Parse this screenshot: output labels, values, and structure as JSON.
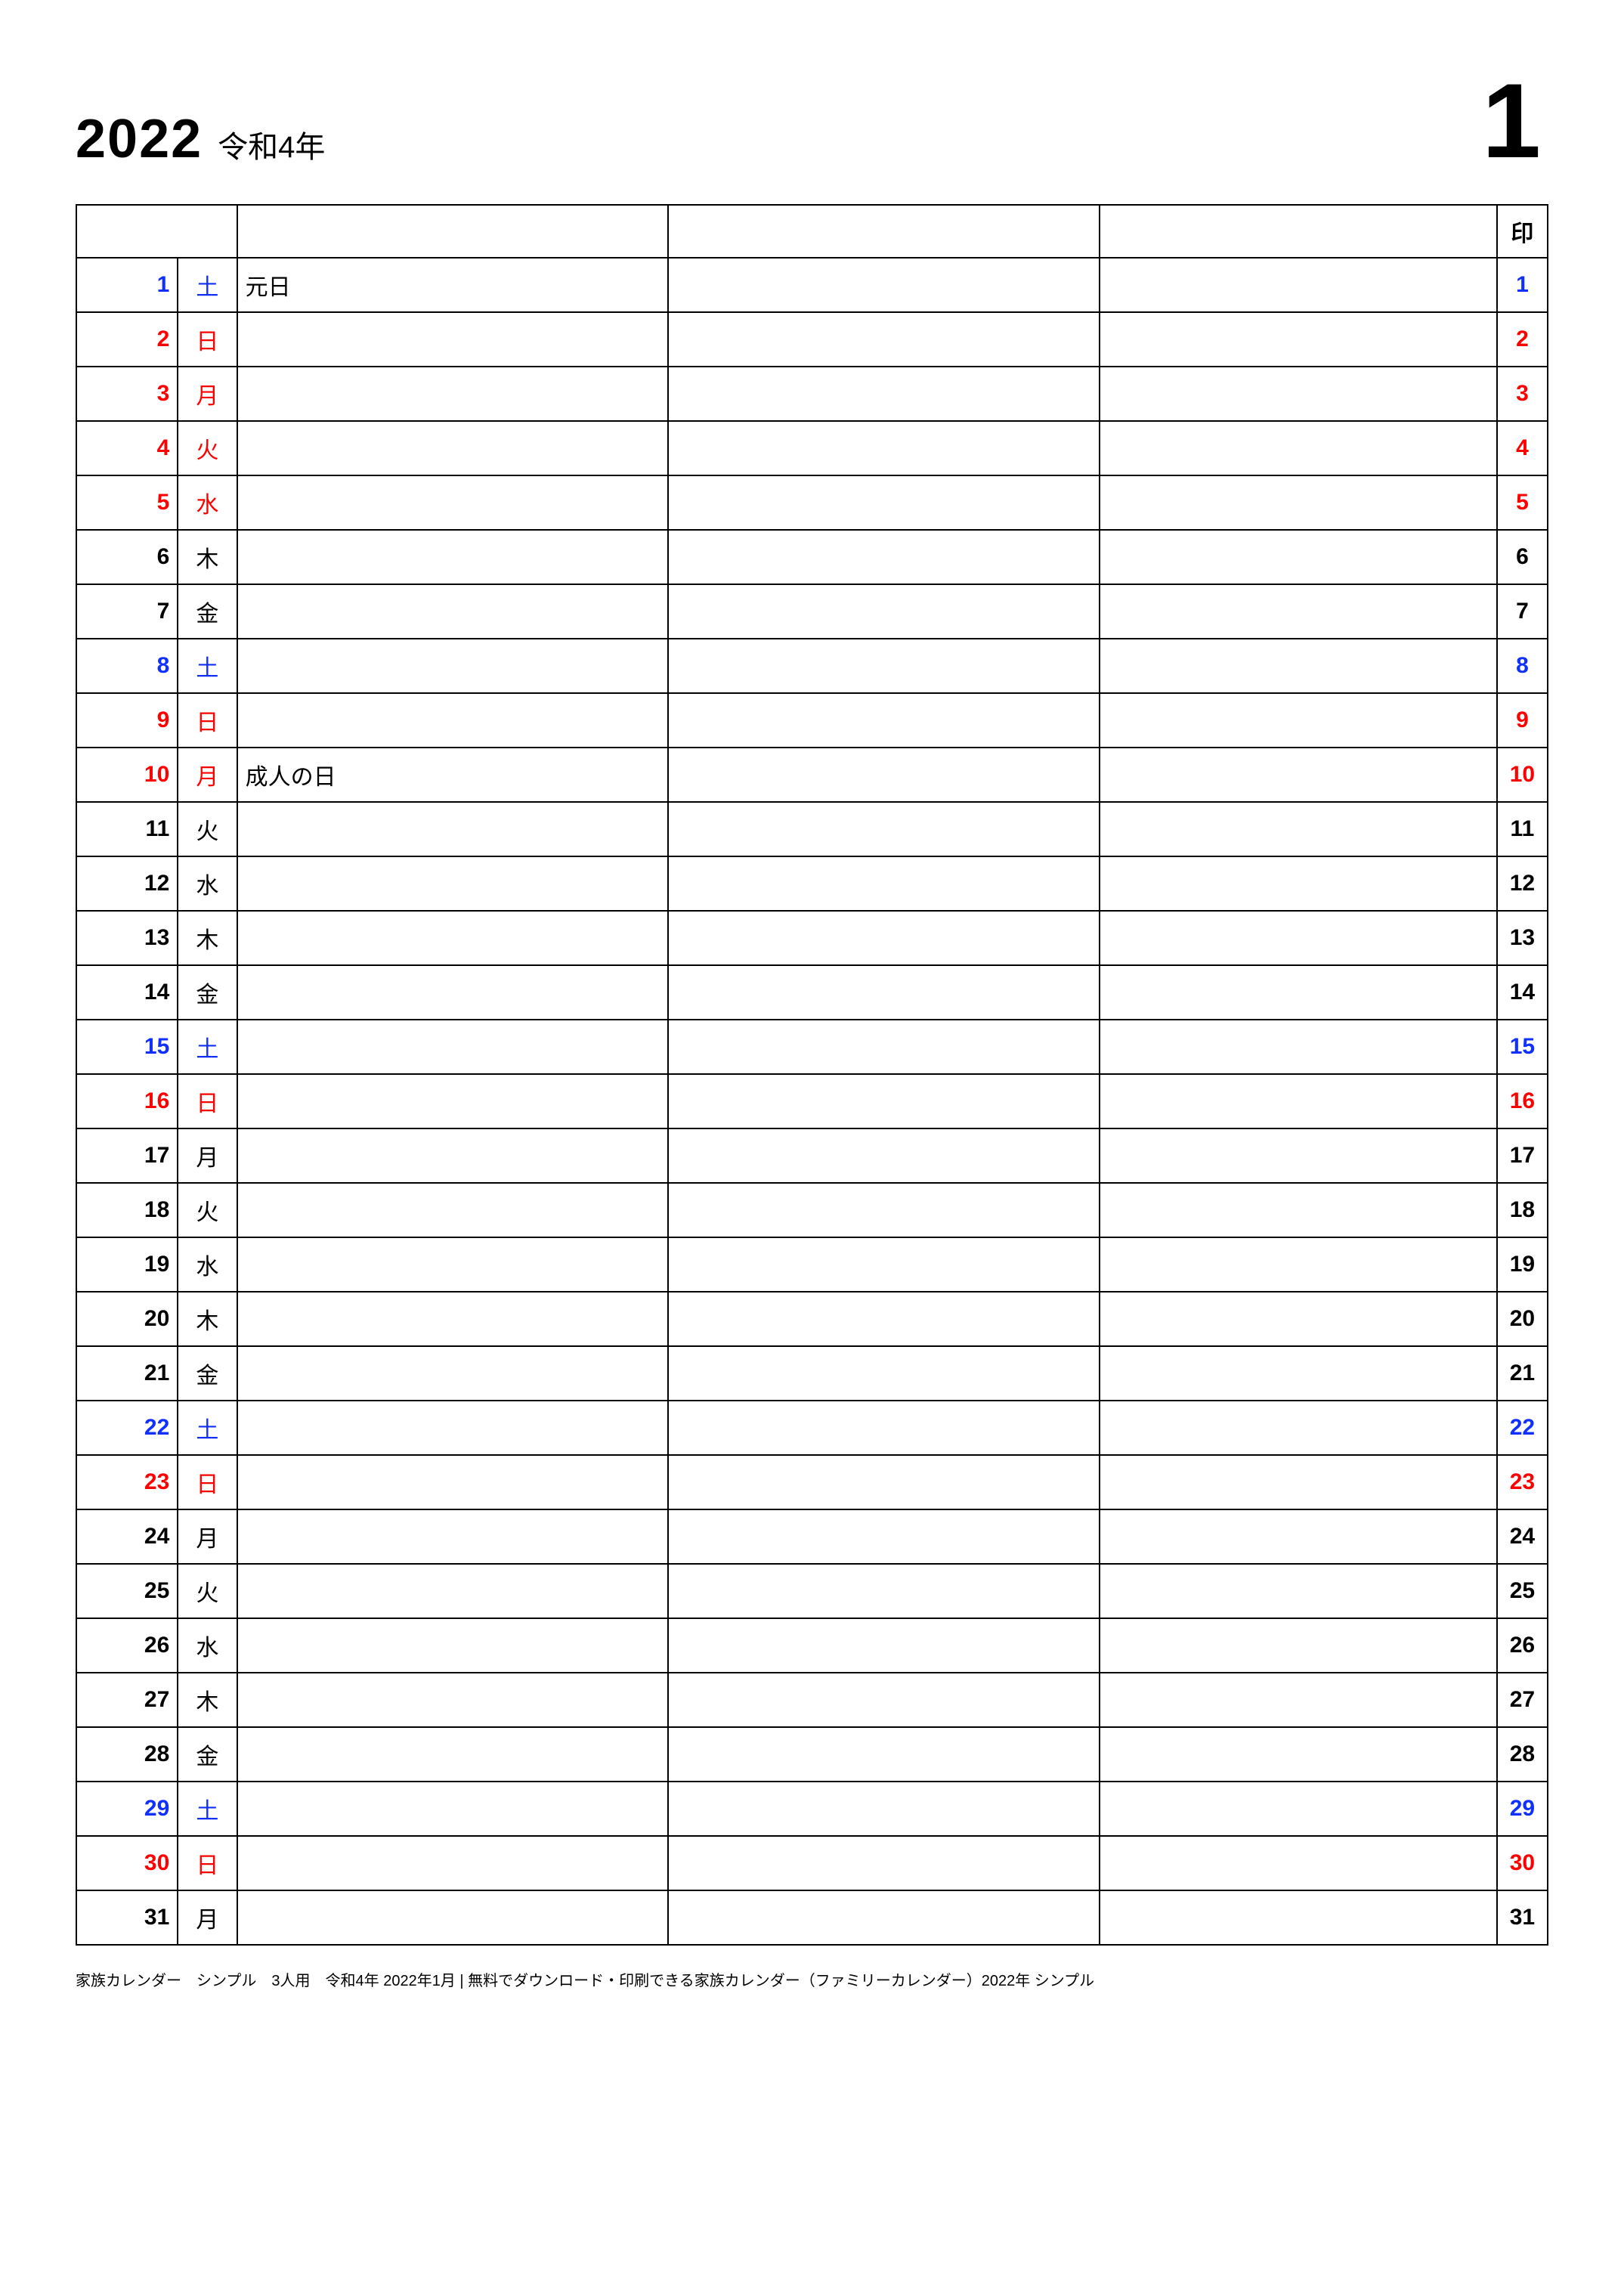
{
  "header": {
    "year": "2022",
    "era": "令和4年",
    "month": "1"
  },
  "columns": {
    "person1": "",
    "person2": "",
    "person3": "",
    "stamp": "印"
  },
  "colors": {
    "weekday": "#000000",
    "saturday": "#1030ff",
    "sunday_holiday": "#ff0000"
  },
  "days": [
    {
      "n": "1",
      "dow": "土",
      "type": "sat",
      "note": "元日"
    },
    {
      "n": "2",
      "dow": "日",
      "type": "sun",
      "note": ""
    },
    {
      "n": "3",
      "dow": "月",
      "type": "hol",
      "note": ""
    },
    {
      "n": "4",
      "dow": "火",
      "type": "hol",
      "note": ""
    },
    {
      "n": "5",
      "dow": "水",
      "type": "hol",
      "note": ""
    },
    {
      "n": "6",
      "dow": "木",
      "type": "wk",
      "note": ""
    },
    {
      "n": "7",
      "dow": "金",
      "type": "wk",
      "note": ""
    },
    {
      "n": "8",
      "dow": "土",
      "type": "sat",
      "note": ""
    },
    {
      "n": "9",
      "dow": "日",
      "type": "sun",
      "note": ""
    },
    {
      "n": "10",
      "dow": "月",
      "type": "hol",
      "note": "成人の日"
    },
    {
      "n": "11",
      "dow": "火",
      "type": "wk",
      "note": ""
    },
    {
      "n": "12",
      "dow": "水",
      "type": "wk",
      "note": ""
    },
    {
      "n": "13",
      "dow": "木",
      "type": "wk",
      "note": ""
    },
    {
      "n": "14",
      "dow": "金",
      "type": "wk",
      "note": ""
    },
    {
      "n": "15",
      "dow": "土",
      "type": "sat",
      "note": ""
    },
    {
      "n": "16",
      "dow": "日",
      "type": "sun",
      "note": ""
    },
    {
      "n": "17",
      "dow": "月",
      "type": "wk",
      "note": ""
    },
    {
      "n": "18",
      "dow": "火",
      "type": "wk",
      "note": ""
    },
    {
      "n": "19",
      "dow": "水",
      "type": "wk",
      "note": ""
    },
    {
      "n": "20",
      "dow": "木",
      "type": "wk",
      "note": ""
    },
    {
      "n": "21",
      "dow": "金",
      "type": "wk",
      "note": ""
    },
    {
      "n": "22",
      "dow": "土",
      "type": "sat",
      "note": ""
    },
    {
      "n": "23",
      "dow": "日",
      "type": "sun",
      "note": ""
    },
    {
      "n": "24",
      "dow": "月",
      "type": "wk",
      "note": ""
    },
    {
      "n": "25",
      "dow": "火",
      "type": "wk",
      "note": ""
    },
    {
      "n": "26",
      "dow": "水",
      "type": "wk",
      "note": ""
    },
    {
      "n": "27",
      "dow": "木",
      "type": "wk",
      "note": ""
    },
    {
      "n": "28",
      "dow": "金",
      "type": "wk",
      "note": ""
    },
    {
      "n": "29",
      "dow": "土",
      "type": "sat",
      "note": ""
    },
    {
      "n": "30",
      "dow": "日",
      "type": "sun",
      "note": ""
    },
    {
      "n": "31",
      "dow": "月",
      "type": "wk",
      "note": ""
    }
  ],
  "footer": "家族カレンダー　シンプル　3人用　令和4年 2022年1月 | 無料でダウンロード・印刷できる家族カレンダー（ファミリーカレンダー）2022年 シンプル"
}
